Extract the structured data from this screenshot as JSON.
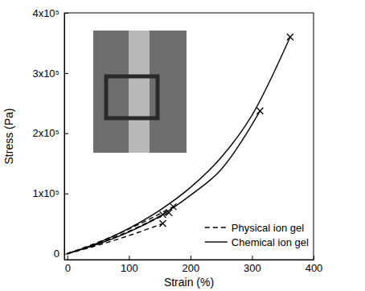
{
  "chart_data": {
    "type": "line",
    "x_label": "Strain (%)",
    "y_label": "Stress (Pa)",
    "xlim": [
      -5,
      400
    ],
    "ylim": [
      -10000,
      400000
    ],
    "xticks": [
      0,
      100,
      200,
      300,
      400
    ],
    "yticks": [
      0,
      {
        "value": 100000,
        "label": "1x10⁵"
      },
      {
        "value": 200000,
        "label": "2x10⁵"
      },
      {
        "value": 300000,
        "label": "3x10⁵"
      },
      {
        "value": 400000,
        "label": "4x10⁵"
      }
    ],
    "legend": "lower right",
    "grid": false,
    "series": [
      {
        "name": "Physical ion gel",
        "color": "#000000",
        "line_style": "dashed",
        "marker": "x",
        "x": [
          0,
          50,
          100,
          155
        ],
        "values": [
          0,
          14000,
          30000,
          50000
        ]
      },
      {
        "name": "Physical ion gel",
        "color": "#000000",
        "line_style": "dashed",
        "marker": "x",
        "x": [
          0,
          50,
          100,
          155
        ],
        "values": [
          0,
          17000,
          37000,
          65000
        ]
      },
      {
        "name": "Physical ion gel",
        "color": "#000000",
        "line_style": "dashed",
        "marker": "x",
        "x": [
          0,
          50,
          100,
          165
        ],
        "values": [
          0,
          17000,
          37000,
          68000
        ]
      },
      {
        "name": "Physical ion gel",
        "color": "#000000",
        "line_style": "dashed",
        "marker": "x",
        "x": [
          0,
          50,
          100,
          172
        ],
        "values": [
          0,
          19000,
          41000,
          78000
        ]
      },
      {
        "name": "Chemical ion gel",
        "color": "#000000",
        "line_style": "solid",
        "marker": "x",
        "x": [
          0,
          50,
          100,
          150,
          200,
          250,
          300,
          362
        ],
        "values": [
          0,
          18000,
          42000,
          72000,
          110000,
          160000,
          230000,
          360000
        ]
      },
      {
        "name": "Chemical ion gel",
        "color": "#000000",
        "line_style": "solid",
        "marker": "x",
        "x": [
          0,
          50,
          100,
          150,
          200,
          250,
          313
        ],
        "values": [
          0,
          16000,
          36000,
          62000,
          97000,
          140000,
          237000
        ]
      }
    ]
  }
}
